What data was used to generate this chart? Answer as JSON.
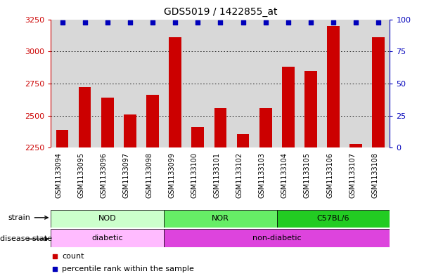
{
  "title": "GDS5019 / 1422855_at",
  "samples": [
    "GSM1133094",
    "GSM1133095",
    "GSM1133096",
    "GSM1133097",
    "GSM1133098",
    "GSM1133099",
    "GSM1133100",
    "GSM1133101",
    "GSM1133102",
    "GSM1133103",
    "GSM1133104",
    "GSM1133105",
    "GSM1133106",
    "GSM1133107",
    "GSM1133108"
  ],
  "counts": [
    2390,
    2720,
    2640,
    2510,
    2660,
    3110,
    2410,
    2560,
    2355,
    2560,
    2880,
    2850,
    3200,
    2280,
    3110
  ],
  "y_min": 2250,
  "y_max": 3250,
  "y_ticks": [
    2250,
    2500,
    2750,
    3000,
    3250
  ],
  "right_y_ticks": [
    0,
    25,
    50,
    75,
    100
  ],
  "bar_color": "#cc0000",
  "dot_color": "#0000bb",
  "grid_color": "#000000",
  "strain_groups": [
    {
      "label": "NOD",
      "start": 0,
      "end": 5,
      "color": "#ccffcc"
    },
    {
      "label": "NOR",
      "start": 5,
      "end": 10,
      "color": "#66ee66"
    },
    {
      "label": "C57BL/6",
      "start": 10,
      "end": 15,
      "color": "#22cc22"
    }
  ],
  "disease_groups": [
    {
      "label": "diabetic",
      "start": 0,
      "end": 5,
      "color": "#ffbbff"
    },
    {
      "label": "non-diabetic",
      "start": 5,
      "end": 15,
      "color": "#dd44dd"
    }
  ],
  "axis_bg": "#d8d8d8",
  "left_axis_color": "#cc0000",
  "right_axis_color": "#0000bb",
  "title_fontsize": 10,
  "tick_fontsize": 7,
  "bar_width": 0.55
}
